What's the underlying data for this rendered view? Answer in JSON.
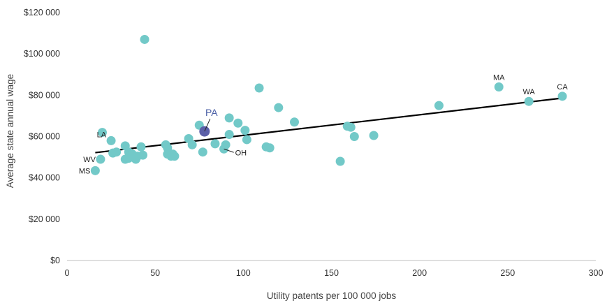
{
  "chart_data": {
    "type": "scatter",
    "title": "",
    "xlabel": "Utility patents per 100 000 jobs",
    "ylabel": "Average state annual wage",
    "xlim": [
      0,
      300
    ],
    "ylim": [
      0,
      120000
    ],
    "x_ticks": [
      0,
      50,
      100,
      150,
      200,
      250,
      300
    ],
    "y_ticks": [
      0,
      20000,
      40000,
      60000,
      80000,
      100000,
      120000
    ],
    "x_tick_labels": [
      "0",
      "50",
      "100",
      "150",
      "200",
      "250",
      "300"
    ],
    "y_tick_labels": [
      "$0",
      "$20 000",
      "$40 000",
      "$60 000",
      "$80 000",
      "$100 000",
      "$120 000"
    ],
    "grid": false,
    "colors": {
      "point": "#72c9c8",
      "highlight": "#5b5fa8",
      "trendline": "#000000",
      "axis": "#bfbfbf"
    },
    "trendline": {
      "x": [
        16,
        280
      ],
      "y": [
        52200,
        78500
      ]
    },
    "points": [
      {
        "x": 16,
        "y": 43500,
        "label": "MS"
      },
      {
        "x": 19,
        "y": 49000,
        "label": "WV"
      },
      {
        "x": 20,
        "y": 62000,
        "label": ""
      },
      {
        "x": 25,
        "y": 58000,
        "label": "LA"
      },
      {
        "x": 26,
        "y": 52000,
        "label": ""
      },
      {
        "x": 28,
        "y": 52500,
        "label": ""
      },
      {
        "x": 33,
        "y": 55500,
        "label": ""
      },
      {
        "x": 33,
        "y": 49000,
        "label": ""
      },
      {
        "x": 35,
        "y": 52500,
        "label": ""
      },
      {
        "x": 35,
        "y": 49500,
        "label": ""
      },
      {
        "x": 37,
        "y": 51500,
        "label": ""
      },
      {
        "x": 39,
        "y": 49000,
        "label": ""
      },
      {
        "x": 40,
        "y": 50500,
        "label": ""
      },
      {
        "x": 42,
        "y": 55000,
        "label": ""
      },
      {
        "x": 43,
        "y": 51000,
        "label": ""
      },
      {
        "x": 44,
        "y": 107000,
        "label": ""
      },
      {
        "x": 56,
        "y": 56000,
        "label": ""
      },
      {
        "x": 57,
        "y": 54500,
        "label": ""
      },
      {
        "x": 57,
        "y": 51500,
        "label": ""
      },
      {
        "x": 59,
        "y": 50500,
        "label": ""
      },
      {
        "x": 60,
        "y": 51500,
        "label": ""
      },
      {
        "x": 61,
        "y": 50500,
        "label": ""
      },
      {
        "x": 69,
        "y": 59000,
        "label": ""
      },
      {
        "x": 71,
        "y": 56000,
        "label": ""
      },
      {
        "x": 75,
        "y": 65500,
        "label": ""
      },
      {
        "x": 77,
        "y": 52500,
        "label": ""
      },
      {
        "x": 78,
        "y": 62500,
        "label": "PA",
        "highlight": true
      },
      {
        "x": 84,
        "y": 56500,
        "label": ""
      },
      {
        "x": 89,
        "y": 54000,
        "label": "OH"
      },
      {
        "x": 90,
        "y": 56000,
        "label": ""
      },
      {
        "x": 92,
        "y": 61000,
        "label": ""
      },
      {
        "x": 92,
        "y": 69000,
        "label": ""
      },
      {
        "x": 97,
        "y": 66500,
        "label": ""
      },
      {
        "x": 101,
        "y": 63000,
        "label": ""
      },
      {
        "x": 102,
        "y": 58500,
        "label": ""
      },
      {
        "x": 109,
        "y": 83500,
        "label": ""
      },
      {
        "x": 113,
        "y": 55000,
        "label": ""
      },
      {
        "x": 115,
        "y": 54500,
        "label": ""
      },
      {
        "x": 120,
        "y": 74000,
        "label": ""
      },
      {
        "x": 129,
        "y": 67000,
        "label": ""
      },
      {
        "x": 155,
        "y": 48000,
        "label": ""
      },
      {
        "x": 159,
        "y": 65000,
        "label": ""
      },
      {
        "x": 161,
        "y": 64500,
        "label": ""
      },
      {
        "x": 163,
        "y": 60000,
        "label": ""
      },
      {
        "x": 174,
        "y": 60500,
        "label": ""
      },
      {
        "x": 211,
        "y": 75000,
        "label": ""
      },
      {
        "x": 245,
        "y": 84000,
        "label": "MA"
      },
      {
        "x": 262,
        "y": 77000,
        "label": "WA"
      },
      {
        "x": 281,
        "y": 79500,
        "label": "CA"
      }
    ]
  }
}
